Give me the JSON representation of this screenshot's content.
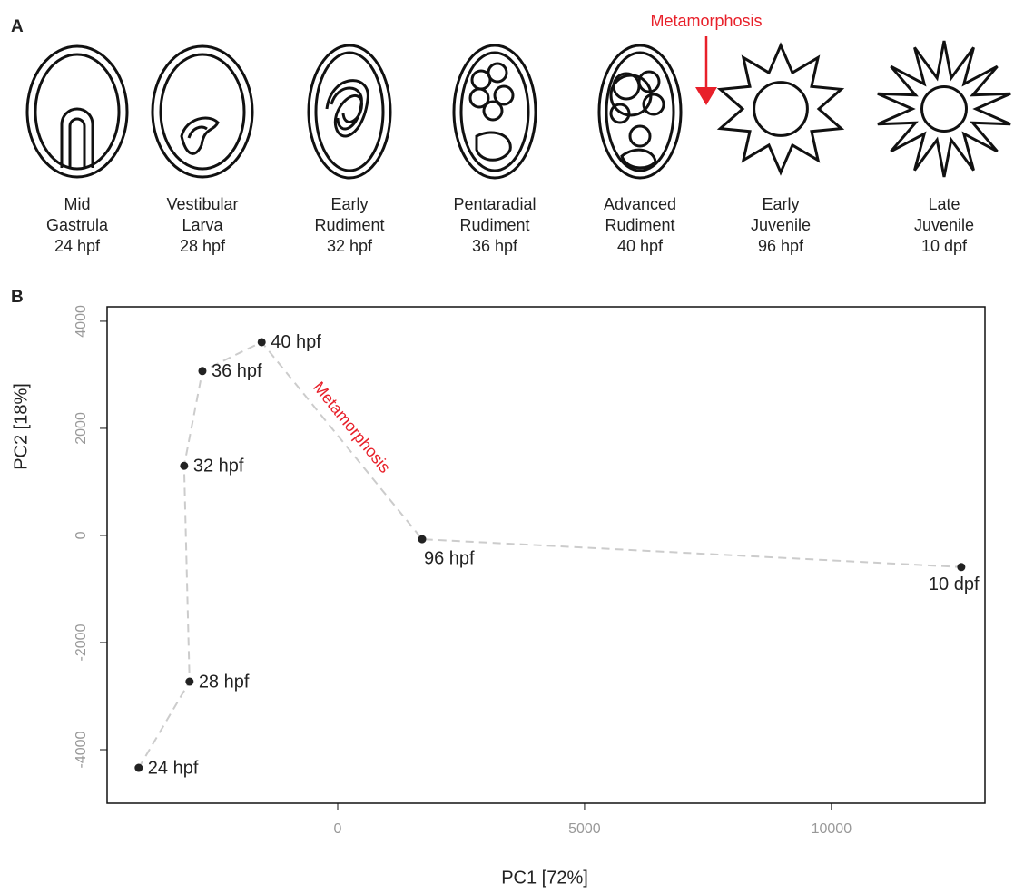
{
  "panel_a": {
    "label": "A",
    "annotation": "Metamorphosis",
    "stages": [
      [
        "Mid",
        "Gastrula",
        "24 hpf"
      ],
      [
        "Vestibular",
        "Larva",
        "28 hpf"
      ],
      [
        "Early",
        "Rudiment",
        "32 hpf"
      ],
      [
        "Pentaradial",
        "Rudiment",
        "36 hpf"
      ],
      [
        "Advanced",
        "Rudiment",
        "40 hpf"
      ],
      [
        "Early",
        "Juvenile",
        "96 hpf"
      ],
      [
        "Late",
        "Juvenile",
        "10 dpf"
      ]
    ]
  },
  "chart_data": {
    "type": "scatter",
    "panel_label": "B",
    "x_label": "PC1 [72%]",
    "y_label": "PC2 [18%]",
    "annotation": "Metamorphosis",
    "labels": [
      "24 hpf",
      "28 hpf",
      "32 hpf",
      "36 hpf",
      "40 hpf",
      "96 hpf",
      "10 dpf"
    ],
    "x": [
      -4030,
      -3000,
      -3110,
      -2740,
      -1540,
      1710,
      12630
    ],
    "y": [
      -4340,
      -2730,
      1300,
      3070,
      3610,
      -70,
      -590
    ],
    "color": "#222",
    "line_color": "#cccccc",
    "annotation_color": "#e8202a",
    "xlim": [
      -4670,
      13110
    ],
    "ylim": [
      -5000,
      4270
    ],
    "xticks": [
      0,
      5000,
      10000
    ],
    "yticks": [
      -4000,
      -2000,
      0,
      2000,
      4000
    ]
  }
}
